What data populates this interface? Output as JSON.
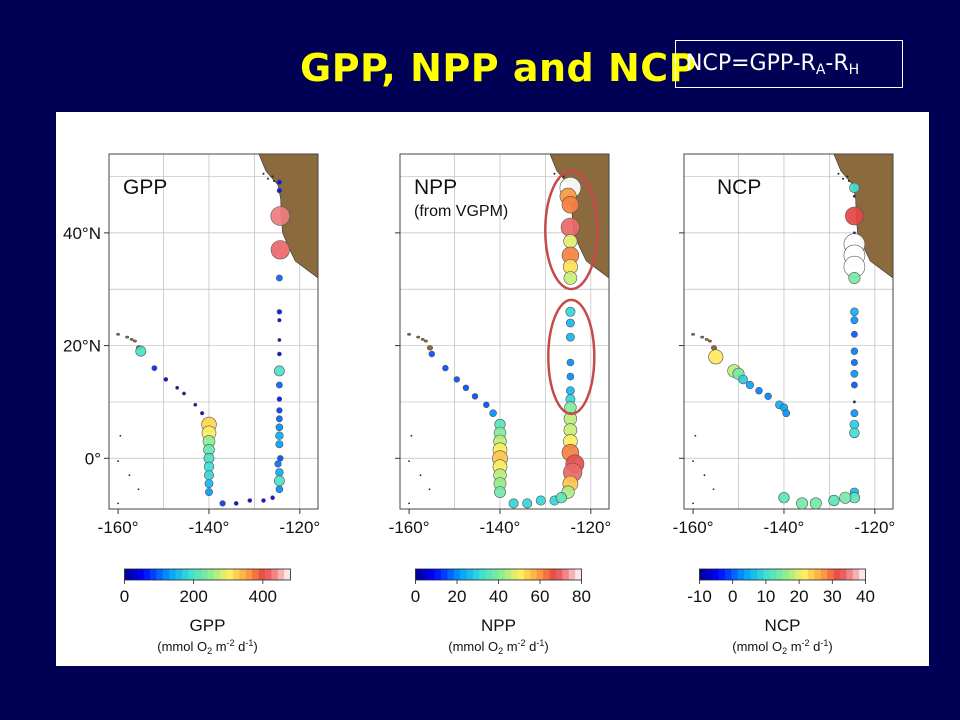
{
  "slide": {
    "title": "GPP, NPP and NCP",
    "equation": {
      "base": "NCP=GPP-R",
      "sub1": "A",
      "dash": "-R",
      "sub2": "H"
    }
  },
  "colors": {
    "background": "#000055",
    "title": "#ffff00",
    "land": "#8b6a3e",
    "circle_outline": "#c64a4a"
  },
  "axes": {
    "lat_labels": [
      "40°N",
      "20°N",
      "0°"
    ],
    "lon_labels": [
      "-160°",
      "-140°",
      "-120°"
    ]
  },
  "panels": [
    {
      "id": "gpp",
      "label": "GPP",
      "sublabel": "",
      "colorbar": {
        "ticks": [
          "0",
          "200",
          "400"
        ],
        "tick_values": [
          0,
          200,
          400
        ],
        "vmin": 0,
        "vmax": 480,
        "title": "GPP",
        "units_pre": "(mmol O",
        "units_sub": "2",
        "units_mid": " m",
        "units_sup1": "-2",
        "units_mid2": " d",
        "units_sup2": "-1",
        "units_post": ")"
      }
    },
    {
      "id": "npp",
      "label": "NPP",
      "sublabel": "(from VGPM)",
      "colorbar": {
        "ticks": [
          "0",
          "20",
          "40",
          "60",
          "80"
        ],
        "tick_values": [
          0,
          20,
          40,
          60,
          80
        ],
        "vmin": 0,
        "vmax": 80,
        "title": "NPP",
        "units_pre": "(mmol O",
        "units_sub": "2",
        "units_mid": " m",
        "units_sup1": "-2",
        "units_mid2": " d",
        "units_sup2": "-1",
        "units_post": ")"
      }
    },
    {
      "id": "ncp",
      "label": "NCP",
      "sublabel": "",
      "colorbar": {
        "ticks": [
          "-10",
          "0",
          "10",
          "20",
          "30",
          "40"
        ],
        "tick_values": [
          -10,
          0,
          10,
          20,
          30,
          40
        ],
        "vmin": -10,
        "vmax": 40,
        "title": "NCP",
        "units_pre": "(mmol O",
        "units_sub": "2",
        "units_mid": " m",
        "units_sup1": "-2",
        "units_mid2": " d",
        "units_sup2": "-1",
        "units_post": ")"
      }
    }
  ],
  "map_extent": {
    "lon": [
      -162,
      -116
    ],
    "lat": [
      -9,
      54
    ]
  },
  "chart_data": [
    {
      "type": "scatter",
      "panel": "GPP",
      "size_encodes": "value",
      "points": [
        {
          "lon": -124.5,
          "lat": 49,
          "v": 60
        },
        {
          "lon": -124.5,
          "lat": 47.5,
          "v": 60
        },
        {
          "lon": -124.3,
          "lat": 43,
          "v": 430
        },
        {
          "lon": -124.3,
          "lat": 37,
          "v": 420
        },
        {
          "lon": -124.5,
          "lat": 32,
          "v": 100
        },
        {
          "lon": -124.5,
          "lat": 26,
          "v": 60
        },
        {
          "lon": -124.5,
          "lat": 24.5,
          "v": 30
        },
        {
          "lon": -124.5,
          "lat": 21,
          "v": 20
        },
        {
          "lon": -124.5,
          "lat": 18.5,
          "v": 40
        },
        {
          "lon": -124.5,
          "lat": 15.5,
          "v": 200
        },
        {
          "lon": -124.5,
          "lat": 13,
          "v": 100
        },
        {
          "lon": -124.5,
          "lat": 10.5,
          "v": 60
        },
        {
          "lon": -124.5,
          "lat": 8.5,
          "v": 80
        },
        {
          "lon": -124.5,
          "lat": 7,
          "v": 100
        },
        {
          "lon": -124.5,
          "lat": 5.5,
          "v": 120
        },
        {
          "lon": -124.5,
          "lat": 4,
          "v": 140
        },
        {
          "lon": -124.5,
          "lat": 2.5,
          "v": 130
        },
        {
          "lon": -124.3,
          "lat": 0,
          "v": 90
        },
        {
          "lon": -124.8,
          "lat": -1,
          "v": 110
        },
        {
          "lon": -124.5,
          "lat": -2.5,
          "v": 140
        },
        {
          "lon": -124.5,
          "lat": -4,
          "v": 200
        },
        {
          "lon": -124.5,
          "lat": -5.5,
          "v": 120
        },
        {
          "lon": -155,
          "lat": 19,
          "v": 200
        },
        {
          "lon": -152,
          "lat": 16,
          "v": 70
        },
        {
          "lon": -149.5,
          "lat": 14,
          "v": 40
        },
        {
          "lon": -147,
          "lat": 12.5,
          "v": 20
        },
        {
          "lon": -145.5,
          "lat": 11.5,
          "v": 20
        },
        {
          "lon": -143,
          "lat": 9.5,
          "v": 20
        },
        {
          "lon": -141.5,
          "lat": 8,
          "v": 30
        },
        {
          "lon": -140,
          "lat": 6,
          "v": 320
        },
        {
          "lon": -140,
          "lat": 4.5,
          "v": 300
        },
        {
          "lon": -140,
          "lat": 3,
          "v": 250
        },
        {
          "lon": -140,
          "lat": 1.5,
          "v": 220
        },
        {
          "lon": -140,
          "lat": 0,
          "v": 200
        },
        {
          "lon": -140,
          "lat": -1.5,
          "v": 190
        },
        {
          "lon": -140,
          "lat": -3,
          "v": 180
        },
        {
          "lon": -140,
          "lat": -4.5,
          "v": 150
        },
        {
          "lon": -140,
          "lat": -6,
          "v": 130
        },
        {
          "lon": -137,
          "lat": -8,
          "v": 80
        },
        {
          "lon": -134,
          "lat": -8,
          "v": 40
        },
        {
          "lon": -131,
          "lat": -7.5,
          "v": 40
        },
        {
          "lon": -128,
          "lat": -7.5,
          "v": 40
        },
        {
          "lon": -126,
          "lat": -7,
          "v": 40
        }
      ]
    },
    {
      "type": "scatter",
      "panel": "NPP",
      "size_encodes": "value",
      "points": [
        {
          "lon": -124.5,
          "lat": 48,
          "v": 80
        },
        {
          "lon": -125,
          "lat": 46.5,
          "v": 60
        },
        {
          "lon": -124.5,
          "lat": 45,
          "v": 62
        },
        {
          "lon": -124.5,
          "lat": 41,
          "v": 70
        },
        {
          "lon": -124.5,
          "lat": 38.5,
          "v": 48
        },
        {
          "lon": -124.5,
          "lat": 36,
          "v": 62
        },
        {
          "lon": -124.5,
          "lat": 34,
          "v": 52
        },
        {
          "lon": -124.5,
          "lat": 32,
          "v": 46
        },
        {
          "lon": -124.5,
          "lat": 26,
          "v": 30
        },
        {
          "lon": -124.5,
          "lat": 24,
          "v": 25
        },
        {
          "lon": -124.5,
          "lat": 21.5,
          "v": 25
        },
        {
          "lon": -124.5,
          "lat": 17,
          "v": 20
        },
        {
          "lon": -124.5,
          "lat": 14.5,
          "v": 20
        },
        {
          "lon": -124.5,
          "lat": 12,
          "v": 25
        },
        {
          "lon": -124.5,
          "lat": 10.5,
          "v": 30
        },
        {
          "lon": -124.5,
          "lat": 9,
          "v": 40
        },
        {
          "lon": -124.5,
          "lat": 7,
          "v": 45
        },
        {
          "lon": -124.5,
          "lat": 5,
          "v": 46
        },
        {
          "lon": -124.5,
          "lat": 3,
          "v": 50
        },
        {
          "lon": -124.5,
          "lat": 1,
          "v": 62
        },
        {
          "lon": -123.5,
          "lat": -1,
          "v": 68
        },
        {
          "lon": -124,
          "lat": -2.5,
          "v": 70
        },
        {
          "lon": -124.5,
          "lat": -4.5,
          "v": 55
        },
        {
          "lon": -125,
          "lat": -6,
          "v": 44
        },
        {
          "lon": -155,
          "lat": 18.5,
          "v": 15
        },
        {
          "lon": -152,
          "lat": 16,
          "v": 15
        },
        {
          "lon": -149.5,
          "lat": 14,
          "v": 15
        },
        {
          "lon": -147.5,
          "lat": 12.5,
          "v": 15
        },
        {
          "lon": -145.5,
          "lat": 11,
          "v": 15
        },
        {
          "lon": -143,
          "lat": 9.5,
          "v": 15
        },
        {
          "lon": -141.5,
          "lat": 8,
          "v": 20
        },
        {
          "lon": -140,
          "lat": 6,
          "v": 35
        },
        {
          "lon": -140,
          "lat": 4.5,
          "v": 40
        },
        {
          "lon": -140,
          "lat": 3,
          "v": 45
        },
        {
          "lon": -140,
          "lat": 1.5,
          "v": 50
        },
        {
          "lon": -140,
          "lat": 0,
          "v": 55
        },
        {
          "lon": -140,
          "lat": -1.5,
          "v": 50
        },
        {
          "lon": -140,
          "lat": -3,
          "v": 45
        },
        {
          "lon": -140,
          "lat": -4.5,
          "v": 42
        },
        {
          "lon": -140,
          "lat": -6,
          "v": 38
        },
        {
          "lon": -137,
          "lat": -8,
          "v": 30
        },
        {
          "lon": -134,
          "lat": -8,
          "v": 30
        },
        {
          "lon": -131,
          "lat": -7.5,
          "v": 30
        },
        {
          "lon": -128,
          "lat": -7.5,
          "v": 30
        },
        {
          "lon": -126.5,
          "lat": -7,
          "v": 35
        }
      ]
    },
    {
      "type": "scatter",
      "panel": "NCP",
      "size_encodes": "value",
      "points": [
        {
          "lon": -124.5,
          "lat": 48,
          "v": 10
        },
        {
          "lon": -124.5,
          "lat": 46.5,
          "v": -10
        },
        {
          "lon": -124.5,
          "lat": 43,
          "v": 32
        },
        {
          "lon": -124.5,
          "lat": 40,
          "v": -10
        },
        {
          "lon": -124.5,
          "lat": 38,
          "v": 40
        },
        {
          "lon": -124.5,
          "lat": 36,
          "v": 40
        },
        {
          "lon": -124.5,
          "lat": 34,
          "v": 40
        },
        {
          "lon": -124.5,
          "lat": 32,
          "v": 14
        },
        {
          "lon": -124.5,
          "lat": 26,
          "v": 5
        },
        {
          "lon": -124.5,
          "lat": 24.5,
          "v": 3
        },
        {
          "lon": -124.5,
          "lat": 22,
          "v": 0
        },
        {
          "lon": -124.5,
          "lat": 19,
          "v": 2
        },
        {
          "lon": -124.5,
          "lat": 17,
          "v": 1
        },
        {
          "lon": -124.5,
          "lat": 15,
          "v": 3
        },
        {
          "lon": -124.5,
          "lat": 13,
          "v": 0
        },
        {
          "lon": -124.5,
          "lat": 10,
          "v": -10
        },
        {
          "lon": -124.5,
          "lat": 8,
          "v": 3
        },
        {
          "lon": -124.5,
          "lat": 6,
          "v": 8
        },
        {
          "lon": -124.5,
          "lat": 4.5,
          "v": 10
        },
        {
          "lon": -124.5,
          "lat": -6,
          "v": 6
        },
        {
          "lon": -124.5,
          "lat": -7,
          "v": 12
        },
        {
          "lon": -155,
          "lat": 18,
          "v": 22
        },
        {
          "lon": -151,
          "lat": 15.5,
          "v": 18
        },
        {
          "lon": -150,
          "lat": 15,
          "v": 14
        },
        {
          "lon": -149,
          "lat": 14,
          "v": 8
        },
        {
          "lon": -147.5,
          "lat": 13,
          "v": 4
        },
        {
          "lon": -145.5,
          "lat": 12,
          "v": 2
        },
        {
          "lon": -143.5,
          "lat": 11,
          "v": 2
        },
        {
          "lon": -141,
          "lat": 9.5,
          "v": 5
        },
        {
          "lon": -140,
          "lat": 9,
          "v": 4
        },
        {
          "lon": -139.5,
          "lat": 8,
          "v": 3
        },
        {
          "lon": -140,
          "lat": -7,
          "v": 12
        },
        {
          "lon": -136,
          "lat": -8,
          "v": 14
        },
        {
          "lon": -133,
          "lat": -8,
          "v": 14
        },
        {
          "lon": -129,
          "lat": -7.5,
          "v": 12
        },
        {
          "lon": -126.5,
          "lat": -7,
          "v": 14
        }
      ]
    }
  ]
}
